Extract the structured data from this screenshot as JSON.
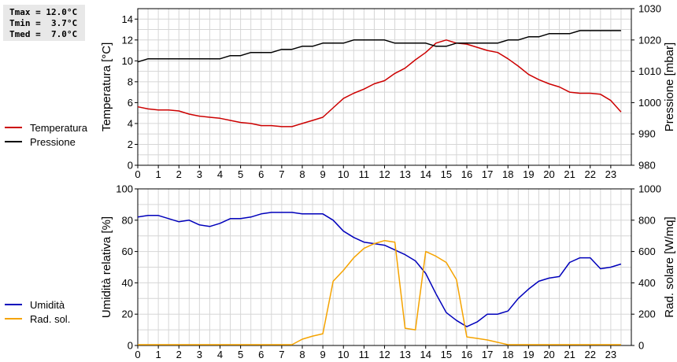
{
  "stats": {
    "tmax": "Tmax = 12.0°C",
    "tmin": "Tmin =  3.7°C",
    "tmed": "Tmed =  7.0°C"
  },
  "legend_top": [
    {
      "label": "Temperatura",
      "color": "#cc0000"
    },
    {
      "label": "Pressione",
      "color": "#000000"
    }
  ],
  "legend_bottom": [
    {
      "label": "Umidità",
      "color": "#0000bb"
    },
    {
      "label": "Rad. sol.",
      "color": "#f5a300"
    }
  ],
  "chart_data": [
    {
      "type": "line",
      "ylabel": "Temperatura [°C]",
      "y2label": "Pressione [mbar]",
      "xlim": [
        0,
        24
      ],
      "ylim": [
        0,
        15
      ],
      "y2lim": [
        980,
        1030
      ],
      "xticks": [
        "0",
        "1",
        "2",
        "3",
        "4",
        "5",
        "6",
        "7",
        "8",
        "9",
        "10",
        "11",
        "12",
        "13",
        "14",
        "15",
        "16",
        "17",
        "18",
        "19",
        "20",
        "21",
        "22",
        "23"
      ],
      "yticks": [
        "0",
        "2",
        "4",
        "6",
        "8",
        "10",
        "12",
        "14"
      ],
      "y2ticks": [
        "980",
        "990",
        "1000",
        "1010",
        "1020",
        "1030"
      ],
      "grid": true,
      "series": [
        {
          "name": "Temperatura",
          "axis": "left",
          "color": "#cc0000",
          "x": [
            0,
            0.5,
            1,
            1.5,
            2,
            2.5,
            3,
            3.5,
            4,
            4.5,
            5,
            5.5,
            6,
            6.5,
            7,
            7.5,
            8,
            8.5,
            9,
            9.5,
            10,
            10.5,
            11,
            11.5,
            12,
            12.5,
            13,
            13.5,
            14,
            14.5,
            15,
            15.5,
            16,
            16.5,
            17,
            17.5,
            18,
            18.5,
            19,
            19.5,
            20,
            20.5,
            21,
            21.5,
            22,
            22.5,
            23,
            23.5
          ],
          "y": [
            5.6,
            5.4,
            5.3,
            5.3,
            5.2,
            4.9,
            4.7,
            4.6,
            4.5,
            4.3,
            4.1,
            4.0,
            3.8,
            3.8,
            3.7,
            3.7,
            4.0,
            4.3,
            4.6,
            5.5,
            6.4,
            6.9,
            7.3,
            7.8,
            8.1,
            8.8,
            9.3,
            10.1,
            10.8,
            11.7,
            12.0,
            11.7,
            11.6,
            11.3,
            11.0,
            10.8,
            10.2,
            9.5,
            8.7,
            8.2,
            7.8,
            7.5,
            7.0,
            6.9,
            6.9,
            6.8,
            6.2,
            5.1
          ]
        },
        {
          "name": "Pressione",
          "axis": "right",
          "color": "#000000",
          "x": [
            0,
            0.5,
            1,
            1.5,
            2,
            2.5,
            3,
            3.5,
            4,
            4.5,
            5,
            5.5,
            6,
            6.5,
            7,
            7.5,
            8,
            8.5,
            9,
            9.5,
            10,
            10.5,
            11,
            11.5,
            12,
            12.5,
            13,
            13.5,
            14,
            14.5,
            15,
            15.5,
            16,
            16.5,
            17,
            17.5,
            18,
            18.5,
            19,
            19.5,
            20,
            20.5,
            21,
            21.5,
            22,
            22.5,
            23,
            23.5
          ],
          "y": [
            1013,
            1014,
            1014,
            1014,
            1014,
            1014,
            1014,
            1014,
            1014,
            1015,
            1015,
            1016,
            1016,
            1016,
            1017,
            1017,
            1018,
            1018,
            1019,
            1019,
            1019,
            1020,
            1020,
            1020,
            1020,
            1019,
            1019,
            1019,
            1019,
            1018,
            1018,
            1019,
            1019,
            1019,
            1019,
            1019,
            1020,
            1020,
            1021,
            1021,
            1022,
            1022,
            1022,
            1023,
            1023,
            1023,
            1023,
            1023
          ]
        }
      ]
    },
    {
      "type": "line",
      "ylabel": "Umidità relativa [%]",
      "y2label": "Rad. solare [W/mq]",
      "xlim": [
        0,
        24
      ],
      "ylim": [
        0,
        100
      ],
      "y2lim": [
        0,
        1000
      ],
      "xticks": [
        "0",
        "1",
        "2",
        "3",
        "4",
        "5",
        "6",
        "7",
        "8",
        "9",
        "10",
        "11",
        "12",
        "13",
        "14",
        "15",
        "16",
        "17",
        "18",
        "19",
        "20",
        "21",
        "22",
        "23"
      ],
      "yticks": [
        "0",
        "20",
        "40",
        "60",
        "80",
        "100"
      ],
      "y2ticks": [
        "0",
        "200",
        "400",
        "600",
        "800",
        "1000"
      ],
      "grid": true,
      "series": [
        {
          "name": "Umidità",
          "axis": "left",
          "color": "#0000bb",
          "x": [
            0,
            0.5,
            1,
            1.5,
            2,
            2.5,
            3,
            3.5,
            4,
            4.5,
            5,
            5.5,
            6,
            6.5,
            7,
            7.5,
            8,
            8.5,
            9,
            9.5,
            10,
            10.5,
            11,
            11.5,
            12,
            12.5,
            13,
            13.5,
            14,
            14.5,
            15,
            15.5,
            16,
            16.5,
            17,
            17.5,
            18,
            18.5,
            19,
            19.5,
            20,
            20.5,
            21,
            21.5,
            22,
            22.5,
            23,
            23.5
          ],
          "y": [
            82,
            83,
            83,
            81,
            79,
            80,
            77,
            76,
            78,
            81,
            81,
            82,
            84,
            85,
            85,
            85,
            84,
            84,
            84,
            80,
            73,
            69,
            66,
            65,
            64,
            61,
            58,
            54,
            46,
            33,
            21,
            16,
            12,
            15,
            20,
            20,
            22,
            30,
            36,
            41,
            43,
            44,
            53,
            56,
            56,
            49,
            50,
            52
          ]
        },
        {
          "name": "Rad. sol.",
          "axis": "right",
          "color": "#f5a300",
          "x": [
            0,
            0.5,
            1,
            1.5,
            2,
            2.5,
            3,
            3.5,
            4,
            4.5,
            5,
            5.5,
            6,
            6.5,
            7,
            7.5,
            8,
            8.5,
            9,
            9.5,
            10,
            10.5,
            11,
            11.5,
            12,
            12.5,
            13,
            13.5,
            14,
            14.5,
            15,
            15.5,
            16,
            16.5,
            17,
            17.5,
            18,
            18.5,
            19,
            19.5,
            20,
            20.5,
            21,
            21.5,
            22,
            22.5,
            23,
            23.5
          ],
          "y": [
            5,
            5,
            5,
            5,
            5,
            5,
            5,
            5,
            5,
            5,
            5,
            5,
            5,
            5,
            5,
            5,
            40,
            60,
            75,
            410,
            480,
            560,
            620,
            650,
            670,
            660,
            110,
            100,
            600,
            570,
            530,
            420,
            55,
            45,
            35,
            20,
            5,
            5,
            5,
            5,
            5,
            5,
            5,
            5,
            5,
            5,
            5,
            5
          ]
        }
      ]
    }
  ]
}
